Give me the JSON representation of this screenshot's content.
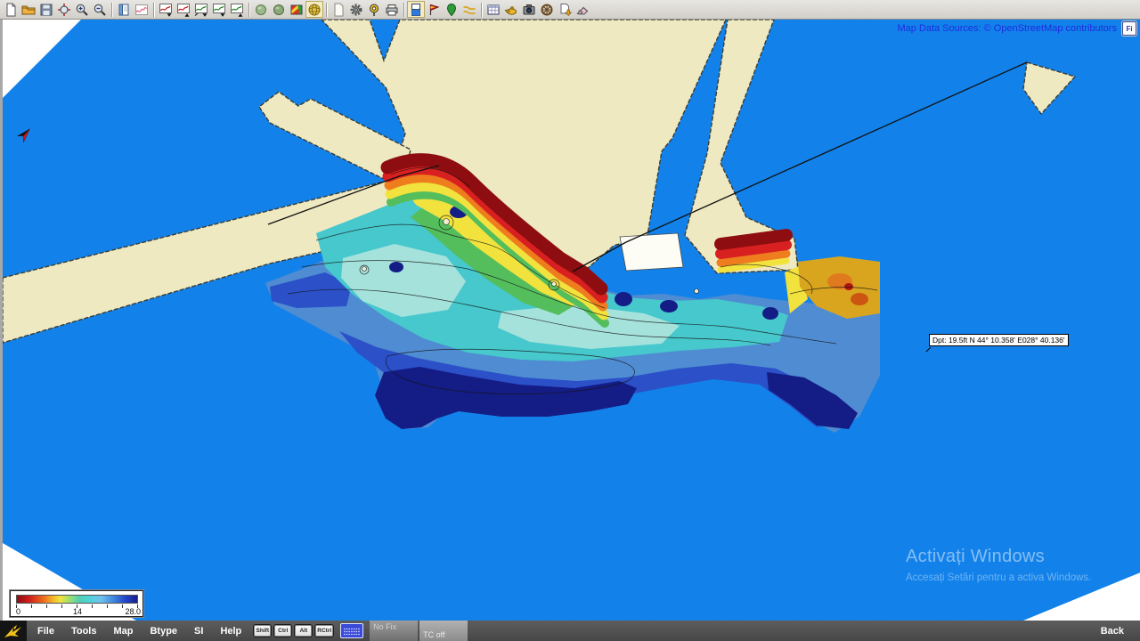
{
  "toolbar": {
    "buttons": [
      {
        "name": "new-file-icon",
        "icon": "page-new"
      },
      {
        "name": "open-file-icon",
        "icon": "folder"
      },
      {
        "name": "save-icon",
        "icon": "save"
      },
      {
        "name": "zoom-extents-icon",
        "icon": "zoom-extents"
      },
      {
        "name": "zoom-in-icon",
        "icon": "zoom-in"
      },
      {
        "name": "zoom-out-icon",
        "icon": "zoom-out"
      },
      {
        "type": "sep"
      },
      {
        "name": "log-viewer-icon",
        "icon": "book"
      },
      {
        "name": "sonar-graph-icon",
        "icon": "wave"
      },
      {
        "type": "sep"
      },
      {
        "name": "import-sonar-log-icon",
        "icon": "chart-red-down"
      },
      {
        "name": "export-sonar-log-icon",
        "icon": "chart-red-up"
      },
      {
        "name": "import-track-icon",
        "icon": "chart-green-both"
      },
      {
        "name": "download-track-icon",
        "icon": "chart-green-down"
      },
      {
        "name": "upload-track-icon",
        "icon": "chart-green-up"
      },
      {
        "type": "sep"
      },
      {
        "name": "render-sphere-icon",
        "icon": "sphere-a"
      },
      {
        "name": "render-sphere-alt-icon",
        "icon": "sphere-b"
      },
      {
        "name": "color-relief-icon",
        "icon": "color-map"
      },
      {
        "name": "globe-3d-icon",
        "icon": "globe",
        "active": true
      },
      {
        "type": "sep"
      },
      {
        "name": "blank-page-icon",
        "icon": "page-blank"
      },
      {
        "name": "settings-gear-icon",
        "icon": "gear"
      },
      {
        "name": "waypoint-pin-icon",
        "icon": "pin"
      },
      {
        "name": "print-icon",
        "icon": "printer"
      },
      {
        "type": "sep"
      },
      {
        "name": "depth-shading-icon",
        "icon": "depth",
        "active": true
      },
      {
        "name": "chart-flag-icon",
        "icon": "flag"
      },
      {
        "name": "poi-marker-icon",
        "icon": "poi"
      },
      {
        "name": "routes-icon",
        "icon": "routes"
      },
      {
        "type": "sep"
      },
      {
        "name": "table-grid-icon",
        "icon": "grid"
      },
      {
        "name": "lamp-icon",
        "icon": "lamp"
      },
      {
        "name": "camera-icon",
        "icon": "camera"
      },
      {
        "name": "steering-wheel-icon",
        "icon": "wheel"
      },
      {
        "name": "data-download-icon",
        "icon": "download"
      },
      {
        "name": "eraser-icon",
        "icon": "eraser"
      }
    ]
  },
  "map": {
    "attribution": "Map Data Sources: © OpenStreetMap contributors",
    "attribution_icon_label": "Fi",
    "depth_tooltip": "Dpt: 19.5ft N 44° 10.358' E028° 40.136'",
    "watermark_title": "Activați Windows",
    "watermark_subtitle": "Accesați Setări pentru a activa Windows.",
    "colors": {
      "water": "#1282ea",
      "land": "#efe9c2",
      "shallow": "#8e0d10",
      "deep": "#141c86"
    }
  },
  "legend": {
    "min": "0",
    "mid": "14",
    "max": "28.0"
  },
  "statusbar": {
    "menus": [
      "File",
      "Tools",
      "Map",
      "Btype",
      "SI",
      "Help"
    ],
    "modifier_keys": [
      "Shift",
      "Ctrl",
      "Alt",
      "RCtrl"
    ],
    "fix_status": "No Fix",
    "tc_status": "TC off",
    "back_label": "Back"
  }
}
